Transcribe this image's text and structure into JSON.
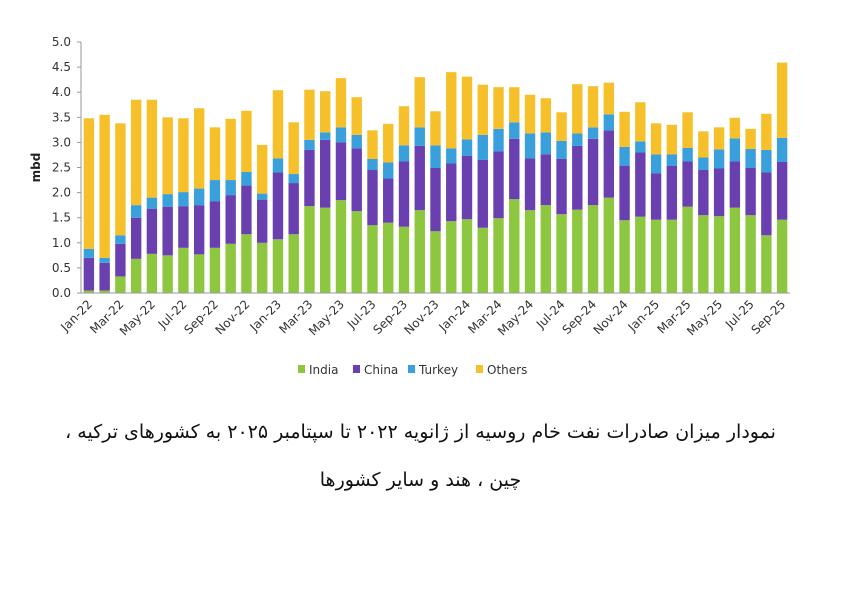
{
  "chart_data": {
    "type": "bar",
    "stacked": true,
    "ylabel": "mbd",
    "ylim": [
      0,
      5
    ],
    "yticks": [
      "0.0",
      "0.5",
      "1.0",
      "1.5",
      "2.0",
      "2.5",
      "3.0",
      "3.5",
      "4.0",
      "4.5",
      "5.0"
    ],
    "categories": [
      "Jan-22",
      "Feb-22",
      "Mar-22",
      "Apr-22",
      "May-22",
      "Jun-22",
      "Jul-22",
      "Aug-22",
      "Sep-22",
      "Oct-22",
      "Nov-22",
      "Dec-22",
      "Jan-23",
      "Feb-23",
      "Mar-23",
      "Apr-23",
      "May-23",
      "Jun-23",
      "Jul-23",
      "Aug-23",
      "Sep-23",
      "Oct-23",
      "Nov-23",
      "Dec-23",
      "Jan-24",
      "Feb-24",
      "Mar-24",
      "Apr-24",
      "May-24",
      "Jun-24",
      "Jul-24",
      "Aug-24",
      "Sep-24",
      "Oct-24",
      "Nov-24",
      "Dec-24",
      "Jan-25",
      "Feb-25",
      "Mar-25",
      "Apr-25",
      "May-25",
      "Jun-25",
      "Jul-25",
      "Aug-25",
      "Sep-25"
    ],
    "xtick_labels": [
      "Jan-22",
      "Mar-22",
      "May-22",
      "Jul-22",
      "Sep-22",
      "Nov-22",
      "Jan-23",
      "Mar-23",
      "May-23",
      "Jul-23",
      "Sep-23",
      "Nov-23",
      "Jan-24",
      "Mar-24",
      "May-24",
      "Jul-24",
      "Sep-24",
      "Nov-24",
      "Jan-25",
      "Mar-25",
      "May-25",
      "Jul-25",
      "Sep-25"
    ],
    "series": [
      {
        "name": "India",
        "color": "#8dc63f",
        "values": [
          0.05,
          0.05,
          0.33,
          0.68,
          0.78,
          0.75,
          0.9,
          0.77,
          0.9,
          0.98,
          1.17,
          1.0,
          1.07,
          1.17,
          1.73,
          1.7,
          1.85,
          1.63,
          1.35,
          1.4,
          1.32,
          1.65,
          1.23,
          1.43,
          1.47,
          1.3,
          1.49,
          1.87,
          1.65,
          1.75,
          1.57,
          1.66,
          1.75,
          1.9,
          1.45,
          1.52,
          1.46,
          1.46,
          1.72,
          1.55,
          1.53,
          1.7,
          1.55,
          1.15,
          1.46
        ]
      },
      {
        "name": "China",
        "color": "#6a3fb0",
        "values": [
          0.65,
          0.55,
          0.65,
          0.82,
          0.9,
          0.97,
          0.83,
          0.98,
          0.93,
          0.97,
          0.97,
          0.86,
          1.33,
          1.02,
          1.12,
          1.35,
          1.15,
          1.25,
          1.1,
          0.88,
          1.3,
          1.28,
          1.26,
          1.15,
          1.26,
          1.35,
          1.33,
          1.2,
          1.03,
          1.01,
          1.1,
          1.27,
          1.32,
          1.34,
          1.08,
          1.28,
          0.92,
          1.07,
          0.9,
          0.9,
          0.95,
          0.92,
          0.94,
          1.25,
          1.15
        ]
      },
      {
        "name": "Turkey",
        "color": "#3aa0dc",
        "values": [
          0.18,
          0.1,
          0.17,
          0.25,
          0.22,
          0.25,
          0.28,
          0.33,
          0.42,
          0.3,
          0.27,
          0.12,
          0.28,
          0.18,
          0.2,
          0.15,
          0.3,
          0.27,
          0.22,
          0.32,
          0.32,
          0.37,
          0.45,
          0.3,
          0.33,
          0.5,
          0.45,
          0.33,
          0.5,
          0.44,
          0.36,
          0.25,
          0.23,
          0.32,
          0.38,
          0.22,
          0.38,
          0.23,
          0.27,
          0.25,
          0.38,
          0.46,
          0.38,
          0.45,
          0.48
        ]
      },
      {
        "name": "Others",
        "color": "#f6c02a",
        "values": [
          2.6,
          2.85,
          2.23,
          2.1,
          1.95,
          1.53,
          1.47,
          1.6,
          1.05,
          1.22,
          1.22,
          0.97,
          1.36,
          1.03,
          1.0,
          0.82,
          0.98,
          0.75,
          0.57,
          0.77,
          0.78,
          1.0,
          0.68,
          1.52,
          1.25,
          1.0,
          0.83,
          0.7,
          0.77,
          0.68,
          0.57,
          0.98,
          0.82,
          0.63,
          0.7,
          0.78,
          0.62,
          0.59,
          0.71,
          0.52,
          0.44,
          0.41,
          0.4,
          0.72,
          1.5
        ]
      }
    ],
    "legend_position": "bottom"
  },
  "caption": {
    "line1": "نمودار میزان صادرات نفت خام روسیه از ژانویه ۲۰۲۲ تا سپتامبر ۲۰۲۵ به کشورهای ترکیه ،",
    "line2": "چین ، هند و سایر کشورها"
  }
}
